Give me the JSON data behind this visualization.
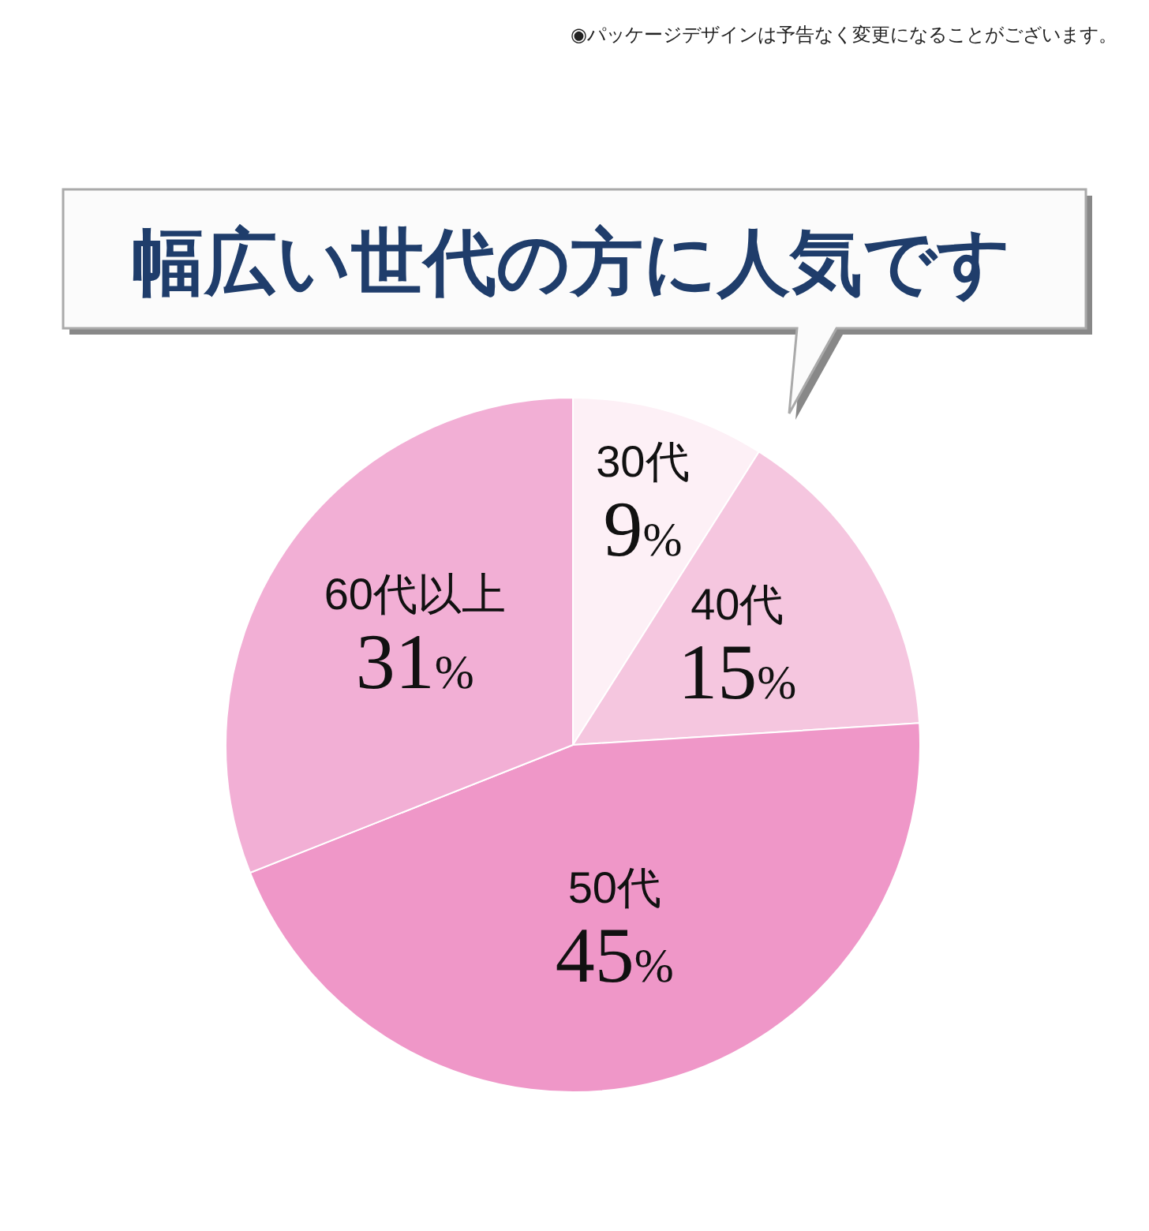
{
  "chart_data": {
    "type": "pie",
    "title": "幅広い世代の方に人気です",
    "annotations": [
      "◉パッケージデザインは予告なく変更になることがございます。"
    ],
    "categories": [
      "30代",
      "40代",
      "50代",
      "60代以上"
    ],
    "values": [
      9,
      15,
      45,
      31
    ],
    "colors": [
      "#fdf0f6",
      "#f5c6df",
      "#ef97c8",
      "#f2afd5"
    ],
    "value_labels": [
      "9%",
      "15%",
      "45%",
      "31%"
    ]
  }
}
